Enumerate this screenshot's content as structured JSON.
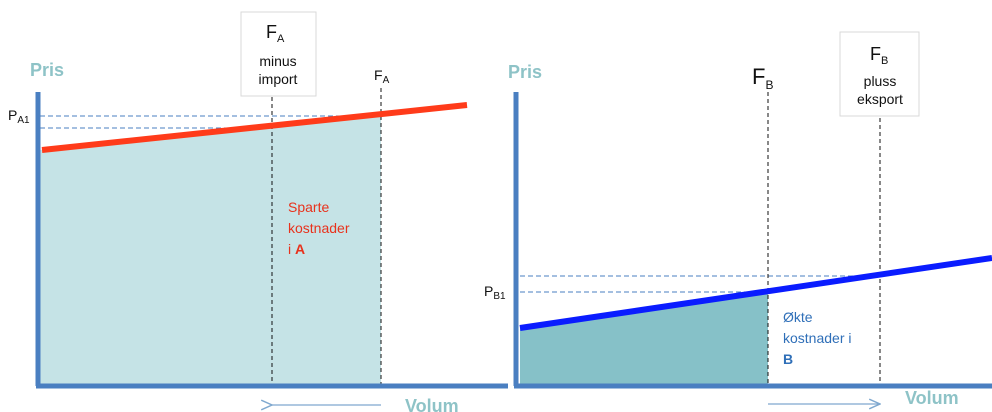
{
  "colors": {
    "axis": "#4a7fc1",
    "axis_title": "#8ec3c7",
    "shade_left": "#c5e3e6",
    "shade_right": "#86c1c8",
    "line_a": "#ff3b1a",
    "line_b": "#0a1cff",
    "note_red": "#e8321c",
    "note_blue": "#2f6fb8",
    "arrow": "#7fa8cf"
  },
  "left_panel": {
    "y_axis_title": "Pris",
    "x_axis_title": "Volum",
    "price_label": {
      "base": "P",
      "sub": "A1"
    },
    "fa_minus_import": {
      "base": "F",
      "sub": "A",
      "line1": "minus",
      "line2": "import"
    },
    "fa": {
      "base": "F",
      "sub": "A"
    },
    "area_note": {
      "line1": "Sparte",
      "line2": "kostnader",
      "line3_prefix": "i ",
      "line3_bold": "A"
    },
    "arrow_direction": "left"
  },
  "right_panel": {
    "y_axis_title": "Pris",
    "x_axis_title": "Volum",
    "price_label": {
      "base": "P",
      "sub": "B1"
    },
    "fb": {
      "base": "F",
      "sub": "B"
    },
    "fb_plus_export": {
      "base": "F",
      "sub": "B",
      "line1": "pluss",
      "line2": "eksport"
    },
    "area_note": {
      "line1": "Økte",
      "line2": "kostnader i",
      "line3_bold": "B"
    },
    "arrow_direction": "right"
  }
}
